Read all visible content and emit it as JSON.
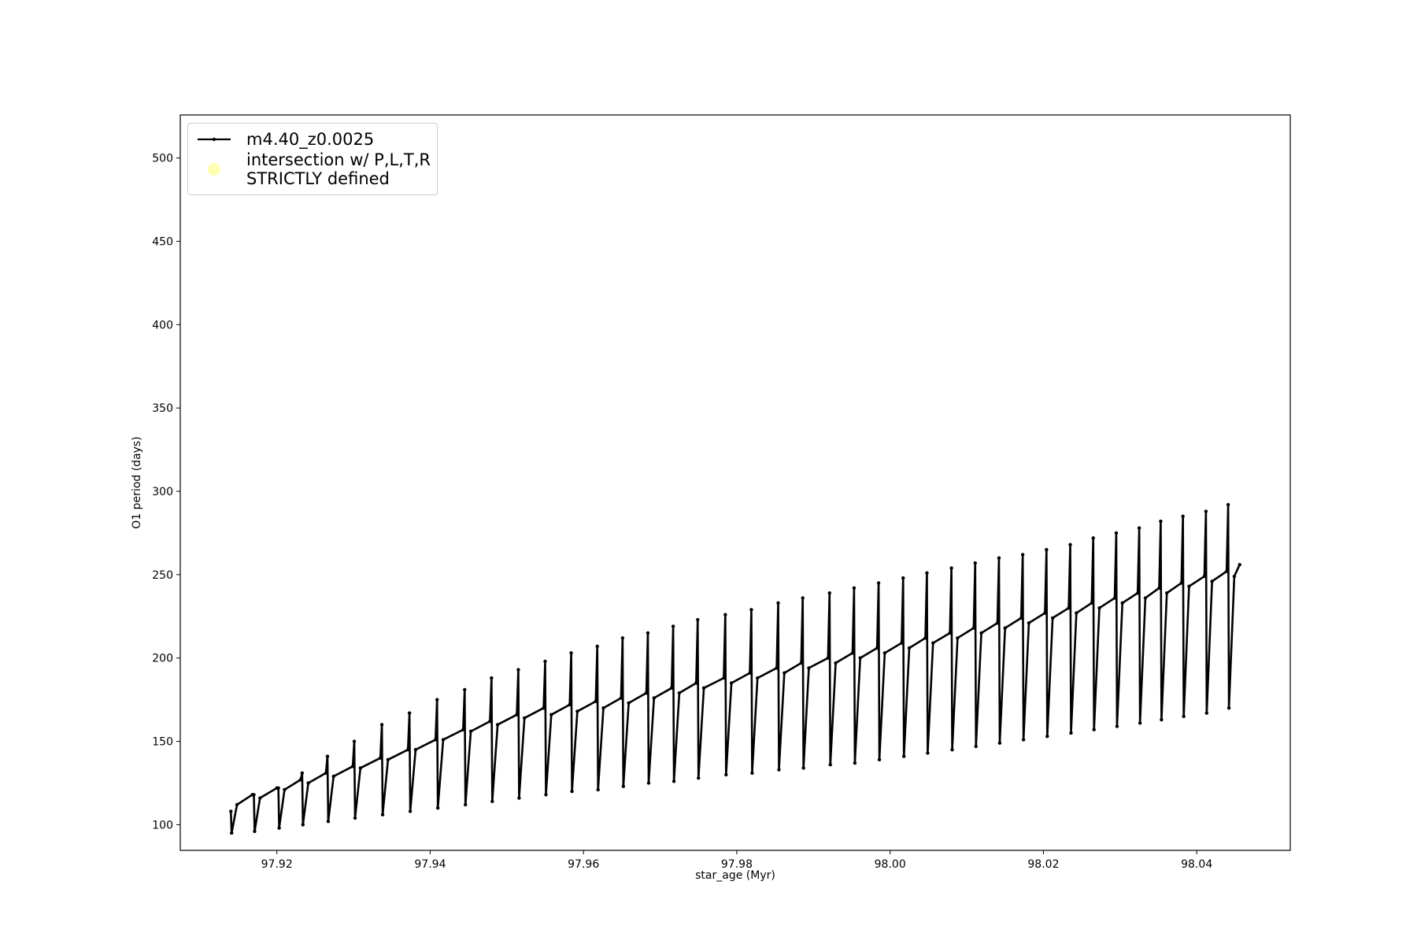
{
  "chart_data": {
    "type": "line",
    "xlabel": "star_age (Myr)",
    "ylabel": "O1 period (days)",
    "xlim": [
      97.9074,
      98.0522
    ],
    "ylim": [
      84.6,
      525.8
    ],
    "xticks": [
      97.92,
      97.94,
      97.96,
      97.98,
      {
        "value": 98,
        "label": "98.00"
      },
      98.02,
      98.04
    ],
    "yticks": [
      100,
      150,
      200,
      250,
      300,
      350,
      400,
      450,
      500
    ],
    "legend": "upper left",
    "series": [
      {
        "name": "m4.40_z0.0025",
        "color": "#000000",
        "type": "line",
        "x": [
          97.914,
          97.9141,
          97.9148,
          97.9168,
          97.917,
          97.9171,
          97.9178,
          97.92,
          97.9202,
          97.9203,
          97.921,
          97.9231,
          97.9233,
          97.9234,
          97.9241,
          97.9264,
          97.9266,
          97.9267,
          97.9274,
          97.9299,
          97.9301,
          97.9302,
          97.9309,
          97.9335,
          97.9337,
          97.9338,
          97.9345,
          97.9371,
          97.9373,
          97.9374,
          97.9381,
          97.9407,
          97.9409,
          97.941,
          97.9417,
          97.9443,
          97.9445,
          97.9446,
          97.9453,
          97.9478,
          97.948,
          97.9481,
          97.9488,
          97.9513,
          97.9515,
          97.9516,
          97.9523,
          97.9548,
          97.955,
          97.9551,
          97.9558,
          97.9582,
          97.9584,
          97.9585,
          97.9592,
          97.9616,
          97.9618,
          97.9619,
          97.9626,
          97.9649,
          97.9651,
          97.9652,
          97.9659,
          97.9682,
          97.9684,
          97.9685,
          97.9692,
          97.9715,
          97.9717,
          97.9718,
          97.9725,
          97.9747,
          97.9749,
          97.975,
          97.9757,
          97.9783,
          97.9785,
          97.9786,
          97.9793,
          97.9817,
          97.9819,
          97.982,
          97.9827,
          97.9852,
          97.9854,
          97.9855,
          97.9862,
          97.9884,
          97.9886,
          97.9887,
          97.9894,
          97.9919,
          97.9921,
          97.9922,
          97.9929,
          97.9951,
          97.9953,
          97.9954,
          97.9961,
          97.9983,
          97.9985,
          97.9986,
          97.9993,
          98.0015,
          98.0017,
          98.0018,
          98.0025,
          98.0046,
          98.0048,
          98.0049,
          98.0056,
          98.0078,
          98.008,
          98.0081,
          98.0088,
          98.0109,
          98.0111,
          98.0112,
          98.0119,
          98.014,
          98.0142,
          98.0143,
          98.015,
          98.0171,
          98.0173,
          98.0174,
          98.0181,
          98.0202,
          98.0204,
          98.0205,
          98.0212,
          98.0233,
          98.0235,
          98.0236,
          98.0243,
          98.0263,
          98.0265,
          98.0266,
          98.0273,
          98.0293,
          98.0295,
          98.0296,
          98.0303,
          98.0323,
          98.0325,
          98.0326,
          98.0333,
          98.0351,
          98.0353,
          98.0354,
          98.0361,
          98.038,
          98.0382,
          98.0383,
          98.039,
          98.041,
          98.0412,
          98.0413,
          98.042,
          98.0439,
          98.0441,
          98.0442,
          98.0449,
          98.0456
        ],
        "values": [
          108,
          95,
          112,
          118,
          118,
          96,
          116,
          122,
          122,
          98,
          121,
          127,
          131,
          100,
          125,
          131,
          141,
          102,
          129,
          135,
          150,
          104,
          134,
          140,
          160,
          106,
          139,
          145,
          167,
          108,
          145,
          151,
          175,
          110,
          151,
          157,
          181,
          112,
          156,
          162,
          188,
          114,
          160,
          166,
          193,
          116,
          164,
          170,
          198,
          118,
          166,
          172,
          203,
          120,
          168,
          174,
          207,
          121,
          170,
          176,
          212,
          123,
          173,
          179,
          215,
          125,
          176,
          182,
          219,
          126,
          179,
          185,
          223,
          128,
          182,
          188,
          226,
          130,
          185,
          191,
          229,
          131,
          188,
          194,
          233,
          133,
          191,
          197,
          236,
          134,
          194,
          200,
          239,
          136,
          197,
          203,
          242,
          137,
          200,
          206,
          245,
          139,
          203,
          209,
          248,
          141,
          206,
          212,
          251,
          143,
          209,
          215,
          254,
          145,
          212,
          218,
          257,
          147,
          215,
          221,
          260,
          149,
          218,
          224,
          262,
          151,
          221,
          227,
          265,
          153,
          224,
          230,
          268,
          155,
          227,
          233,
          272,
          157,
          230,
          236,
          275,
          159,
          233,
          239,
          278,
          161,
          236,
          242,
          282,
          163,
          239,
          245,
          285,
          165,
          243,
          249,
          288,
          167,
          246,
          252,
          292,
          170,
          249,
          256
        ]
      },
      {
        "name": "intersection w/ P,L,T,R\nSTRICTLY defined",
        "color": "#ffffb3",
        "type": "scatter",
        "x": [],
        "values": []
      }
    ]
  }
}
